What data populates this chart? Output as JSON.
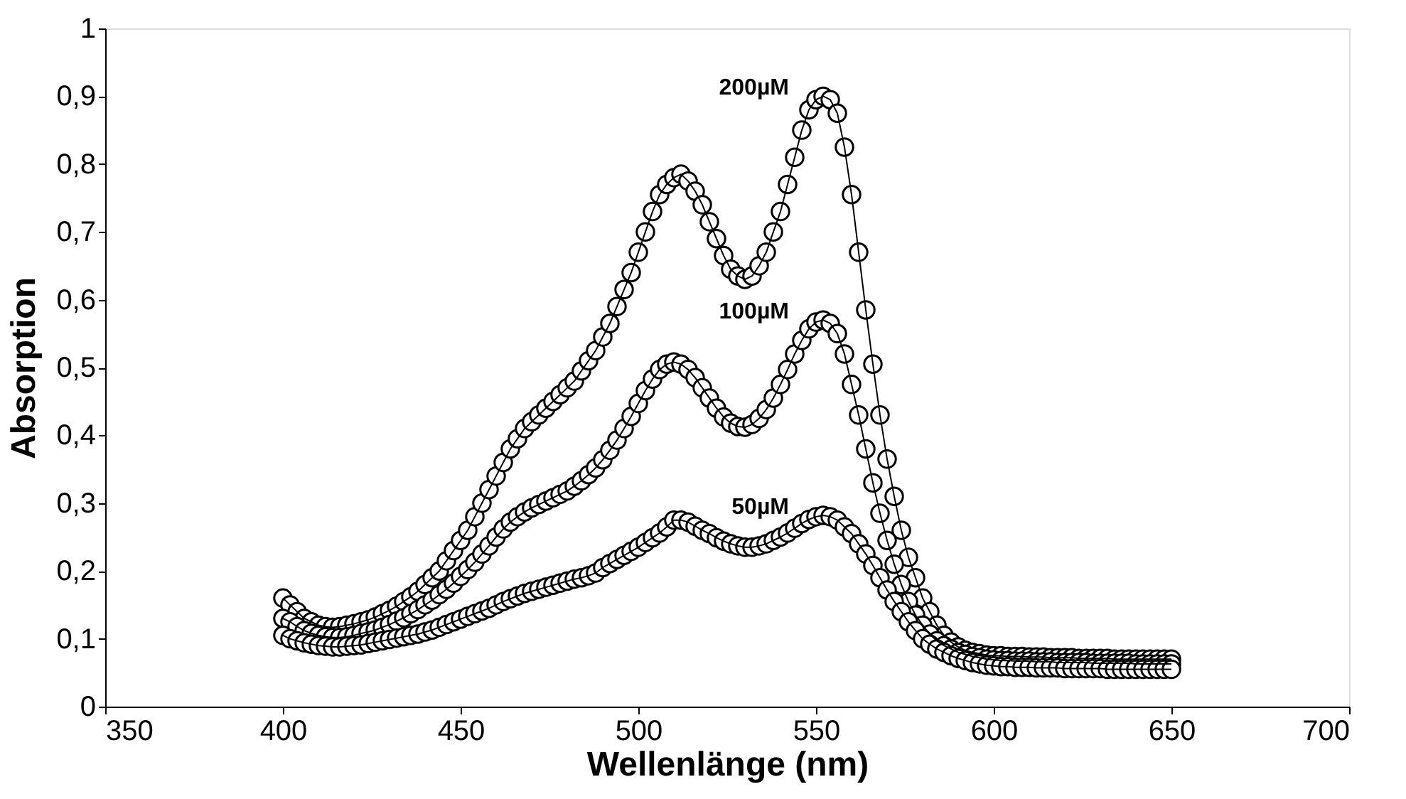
{
  "chart_data": {
    "type": "line",
    "xlabel": "Wellenlänge (nm)",
    "ylabel": "Absorption",
    "x": [
      400,
      402,
      404,
      406,
      408,
      410,
      412,
      414,
      416,
      418,
      420,
      422,
      424,
      426,
      428,
      430,
      432,
      434,
      436,
      438,
      440,
      442,
      444,
      446,
      448,
      450,
      452,
      454,
      456,
      458,
      460,
      462,
      464,
      466,
      468,
      470,
      472,
      474,
      476,
      478,
      480,
      482,
      484,
      486,
      488,
      490,
      492,
      494,
      496,
      498,
      500,
      502,
      504,
      506,
      508,
      510,
      512,
      514,
      516,
      518,
      520,
      522,
      524,
      526,
      528,
      530,
      532,
      534,
      536,
      538,
      540,
      542,
      544,
      546,
      548,
      550,
      552,
      554,
      556,
      558,
      560,
      562,
      564,
      566,
      568,
      570,
      572,
      574,
      576,
      578,
      580,
      582,
      584,
      586,
      588,
      590,
      592,
      594,
      596,
      598,
      600,
      602,
      604,
      606,
      608,
      610,
      612,
      614,
      616,
      618,
      620,
      622,
      624,
      626,
      628,
      630,
      632,
      634,
      636,
      638,
      640,
      642,
      644,
      646,
      648,
      650
    ],
    "series": [
      {
        "name": "200µM",
        "color": "#000000",
        "values": [
          0.16,
          0.15,
          0.14,
          0.13,
          0.125,
          0.12,
          0.118,
          0.117,
          0.118,
          0.12,
          0.122,
          0.125,
          0.128,
          0.132,
          0.137,
          0.142,
          0.148,
          0.155,
          0.162,
          0.17,
          0.18,
          0.19,
          0.2,
          0.215,
          0.23,
          0.245,
          0.26,
          0.28,
          0.3,
          0.32,
          0.34,
          0.36,
          0.38,
          0.395,
          0.41,
          0.42,
          0.43,
          0.44,
          0.45,
          0.46,
          0.47,
          0.48,
          0.495,
          0.51,
          0.525,
          0.545,
          0.565,
          0.59,
          0.615,
          0.64,
          0.67,
          0.7,
          0.73,
          0.755,
          0.77,
          0.78,
          0.785,
          0.775,
          0.76,
          0.74,
          0.715,
          0.69,
          0.665,
          0.645,
          0.635,
          0.63,
          0.635,
          0.65,
          0.67,
          0.7,
          0.73,
          0.77,
          0.81,
          0.85,
          0.88,
          0.895,
          0.9,
          0.895,
          0.875,
          0.825,
          0.755,
          0.67,
          0.585,
          0.505,
          0.43,
          0.365,
          0.31,
          0.26,
          0.22,
          0.19,
          0.16,
          0.14,
          0.12,
          0.105,
          0.095,
          0.088,
          0.083,
          0.08,
          0.078,
          0.076,
          0.075,
          0.075,
          0.074,
          0.074,
          0.074,
          0.073,
          0.073,
          0.073,
          0.072,
          0.072,
          0.072,
          0.072,
          0.071,
          0.071,
          0.071,
          0.071,
          0.071,
          0.07,
          0.07,
          0.07,
          0.07,
          0.07,
          0.07,
          0.07,
          0.07,
          0.07
        ]
      },
      {
        "name": "100µM",
        "color": "#000000",
        "values": [
          0.13,
          0.125,
          0.118,
          0.112,
          0.108,
          0.105,
          0.103,
          0.102,
          0.102,
          0.103,
          0.105,
          0.108,
          0.11,
          0.113,
          0.117,
          0.121,
          0.126,
          0.131,
          0.137,
          0.143,
          0.15,
          0.157,
          0.165,
          0.173,
          0.182,
          0.192,
          0.202,
          0.213,
          0.225,
          0.237,
          0.25,
          0.262,
          0.272,
          0.28,
          0.287,
          0.293,
          0.298,
          0.303,
          0.308,
          0.313,
          0.318,
          0.325,
          0.333,
          0.342,
          0.352,
          0.364,
          0.378,
          0.393,
          0.41,
          0.428,
          0.447,
          0.466,
          0.483,
          0.497,
          0.505,
          0.508,
          0.505,
          0.497,
          0.485,
          0.47,
          0.455,
          0.44,
          0.427,
          0.418,
          0.413,
          0.412,
          0.416,
          0.425,
          0.438,
          0.455,
          0.475,
          0.497,
          0.52,
          0.54,
          0.557,
          0.567,
          0.57,
          0.565,
          0.55,
          0.52,
          0.475,
          0.43,
          0.38,
          0.33,
          0.285,
          0.245,
          0.21,
          0.18,
          0.155,
          0.135,
          0.12,
          0.107,
          0.097,
          0.09,
          0.085,
          0.08,
          0.077,
          0.074,
          0.072,
          0.07,
          0.069,
          0.068,
          0.068,
          0.067,
          0.067,
          0.067,
          0.066,
          0.066,
          0.066,
          0.065,
          0.065,
          0.065,
          0.065,
          0.065,
          0.064,
          0.064,
          0.064,
          0.064,
          0.064,
          0.064,
          0.063,
          0.063,
          0.063,
          0.063,
          0.063,
          0.063
        ]
      },
      {
        "name": "50µM",
        "color": "#000000",
        "values": [
          0.105,
          0.1,
          0.097,
          0.094,
          0.092,
          0.09,
          0.089,
          0.088,
          0.088,
          0.089,
          0.09,
          0.091,
          0.093,
          0.095,
          0.097,
          0.099,
          0.101,
          0.103,
          0.105,
          0.107,
          0.11,
          0.113,
          0.117,
          0.121,
          0.125,
          0.129,
          0.133,
          0.137,
          0.141,
          0.145,
          0.15,
          0.155,
          0.159,
          0.163,
          0.167,
          0.17,
          0.173,
          0.176,
          0.179,
          0.182,
          0.185,
          0.188,
          0.19,
          0.193,
          0.197,
          0.205,
          0.211,
          0.217,
          0.223,
          0.229,
          0.235,
          0.242,
          0.249,
          0.256,
          0.265,
          0.275,
          0.275,
          0.272,
          0.266,
          0.26,
          0.255,
          0.249,
          0.244,
          0.24,
          0.237,
          0.235,
          0.235,
          0.237,
          0.24,
          0.245,
          0.25,
          0.256,
          0.263,
          0.27,
          0.276,
          0.28,
          0.282,
          0.28,
          0.275,
          0.265,
          0.255,
          0.24,
          0.225,
          0.208,
          0.19,
          0.172,
          0.155,
          0.14,
          0.125,
          0.112,
          0.1,
          0.092,
          0.085,
          0.08,
          0.075,
          0.071,
          0.068,
          0.065,
          0.063,
          0.061,
          0.06,
          0.059,
          0.059,
          0.058,
          0.058,
          0.058,
          0.057,
          0.057,
          0.057,
          0.057,
          0.056,
          0.056,
          0.056,
          0.056,
          0.056,
          0.056,
          0.055,
          0.055,
          0.055,
          0.055,
          0.055,
          0.055,
          0.055,
          0.055,
          0.055,
          0.055
        ]
      }
    ],
    "marker": "circle",
    "line_style": "solid",
    "grid": false,
    "legend": false,
    "xlim": [
      350,
      700
    ],
    "xticks": [
      350,
      400,
      450,
      500,
      550,
      600,
      650,
      700
    ],
    "ylim": [
      0,
      1
    ],
    "yticks": [
      0,
      {
        "value": 0.1,
        "label": "0,1"
      },
      {
        "value": 0.2,
        "label": "0,2"
      },
      {
        "value": 0.3,
        "label": "0,3"
      },
      {
        "value": 0.4,
        "label": "0,4"
      },
      {
        "value": 0.5,
        "label": "0,5"
      },
      {
        "value": 0.6,
        "label": "0,6"
      },
      {
        "value": 0.7,
        "label": "0,7"
      },
      {
        "value": 0.8,
        "label": "0,8"
      },
      {
        "value": 0.9,
        "label": "0,9"
      },
      1
    ]
  }
}
